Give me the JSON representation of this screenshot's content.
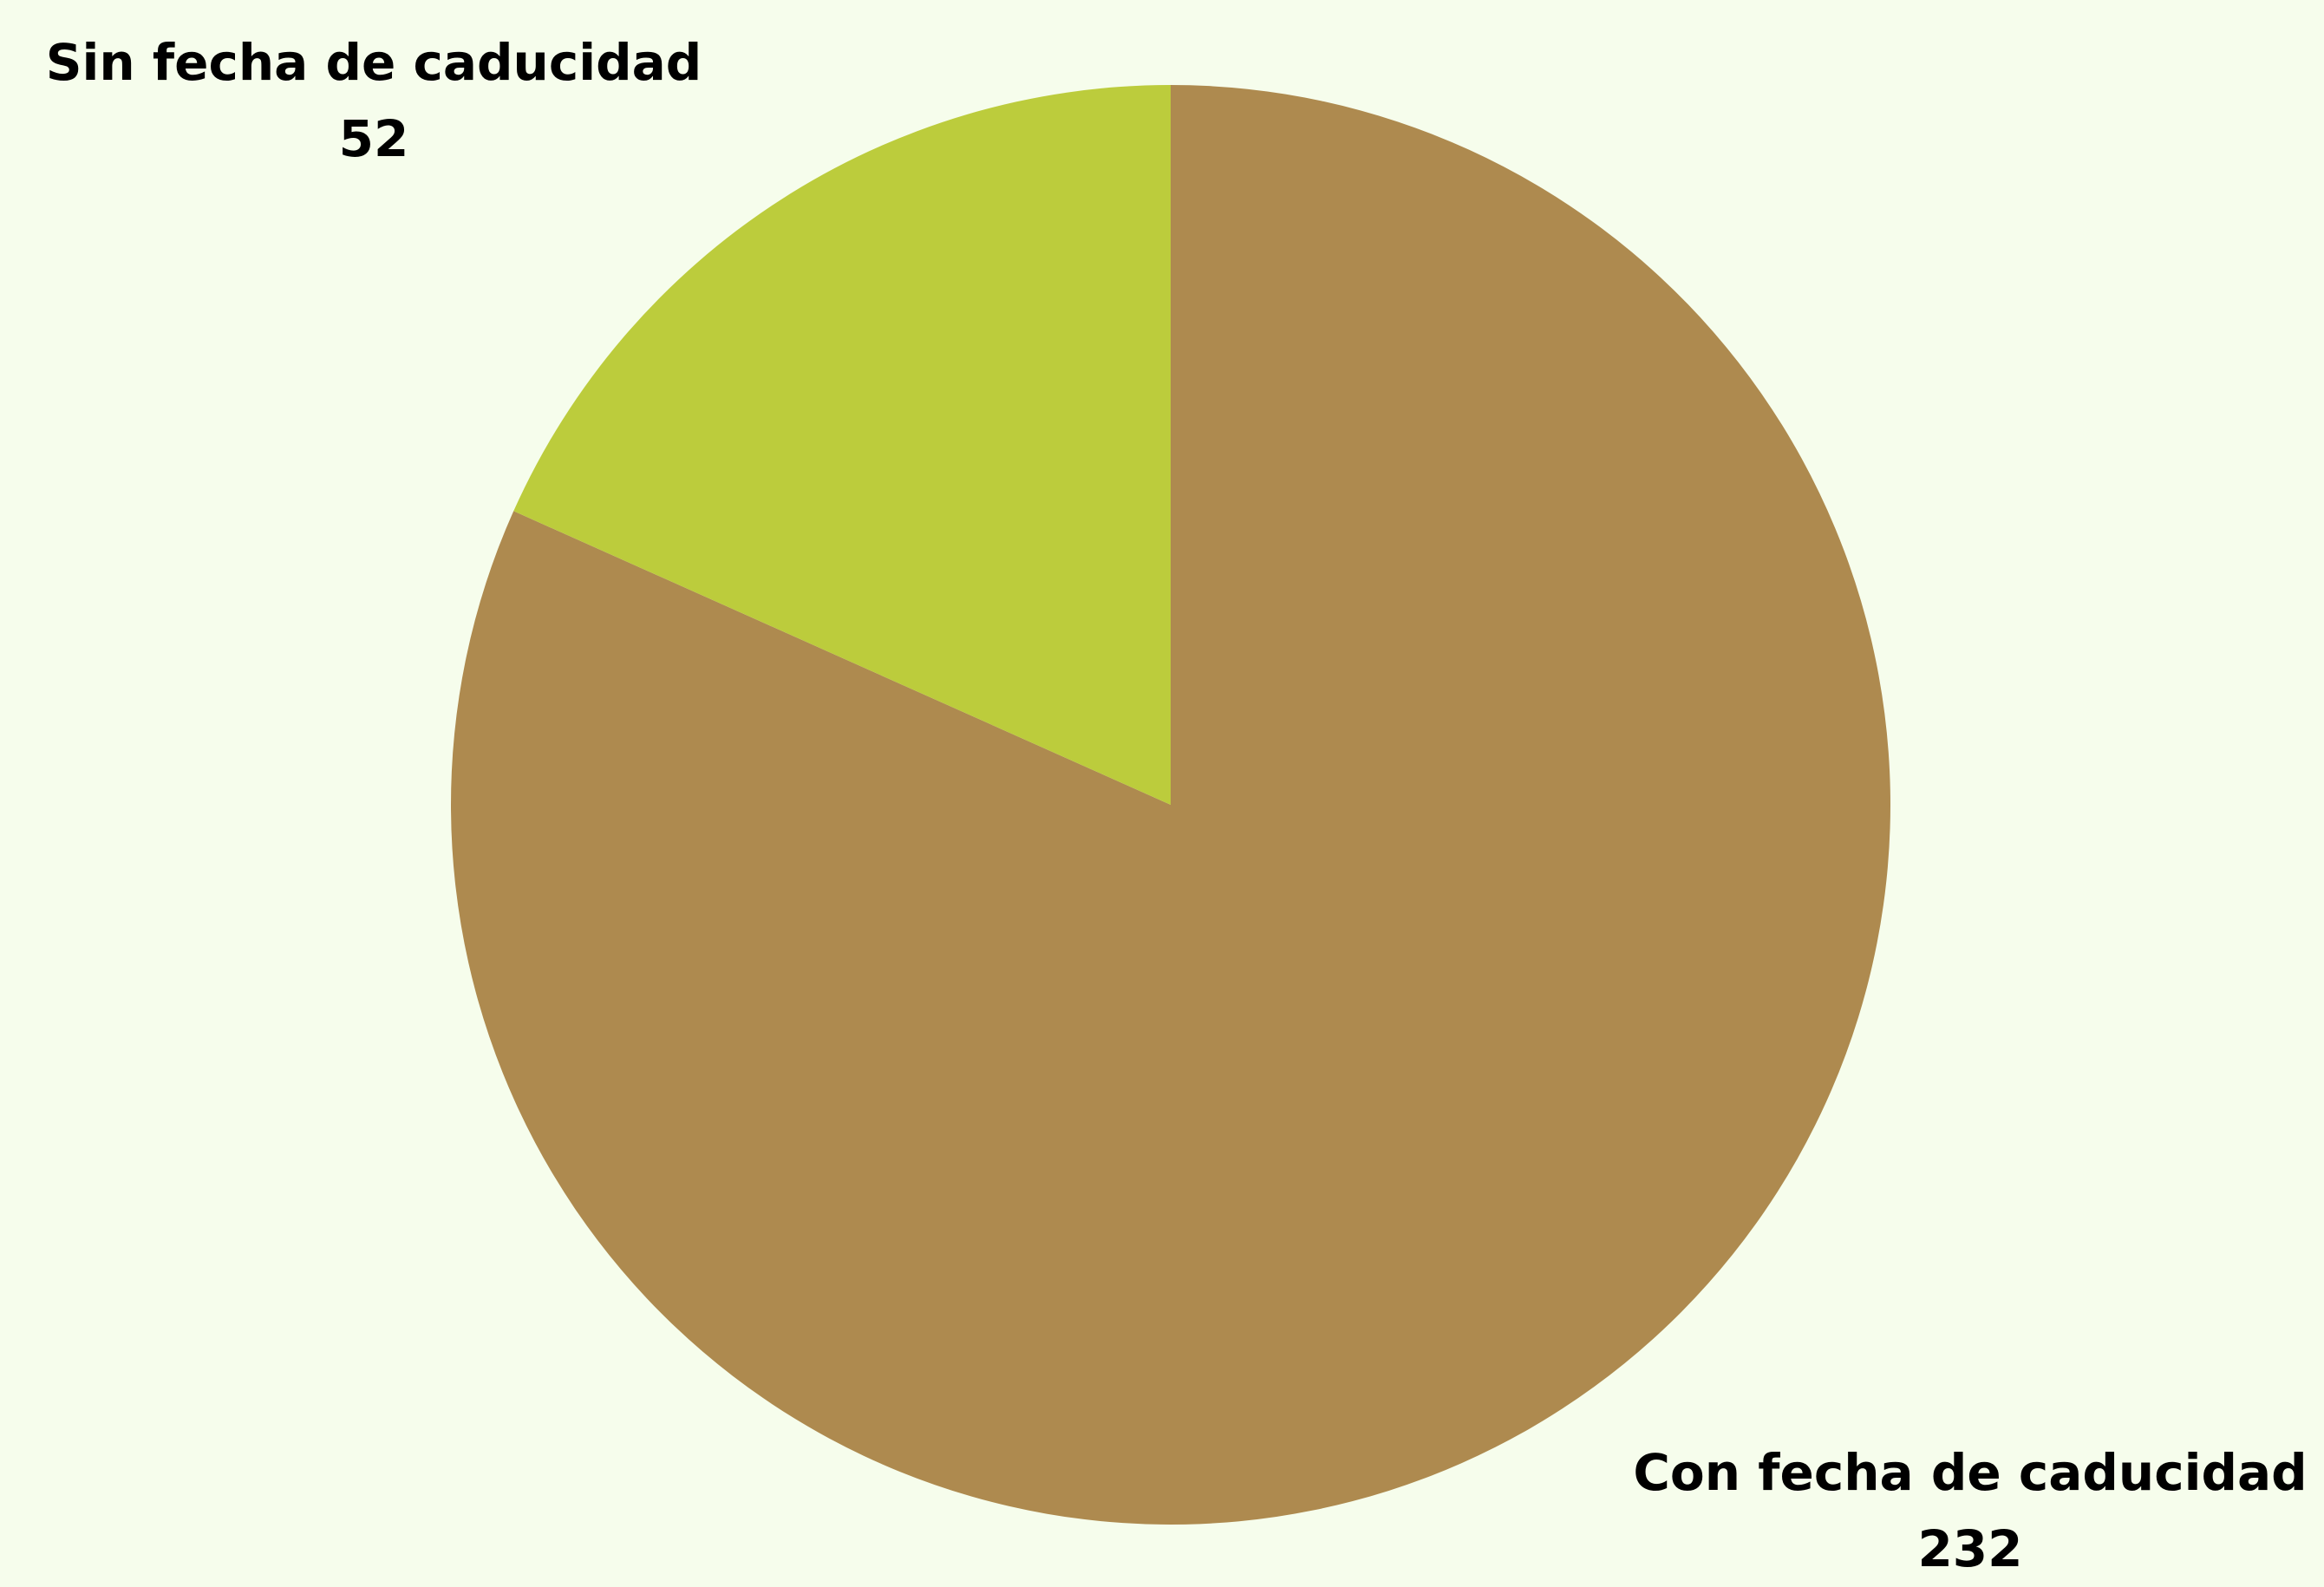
{
  "chart_data": {
    "type": "pie",
    "title": "",
    "start_angle_deg": 0,
    "direction": "clockwise",
    "slices": [
      {
        "label": "Con fecha de caducidad",
        "value": 232,
        "value_text": "232",
        "color": "#ae8a4f"
      },
      {
        "label": "Sin fecha de caducidad",
        "value": 52,
        "value_text": "52",
        "color": "#bccc3c"
      }
    ],
    "legend": "none",
    "background_color": "#f6fdec",
    "label_color": "#000000"
  }
}
